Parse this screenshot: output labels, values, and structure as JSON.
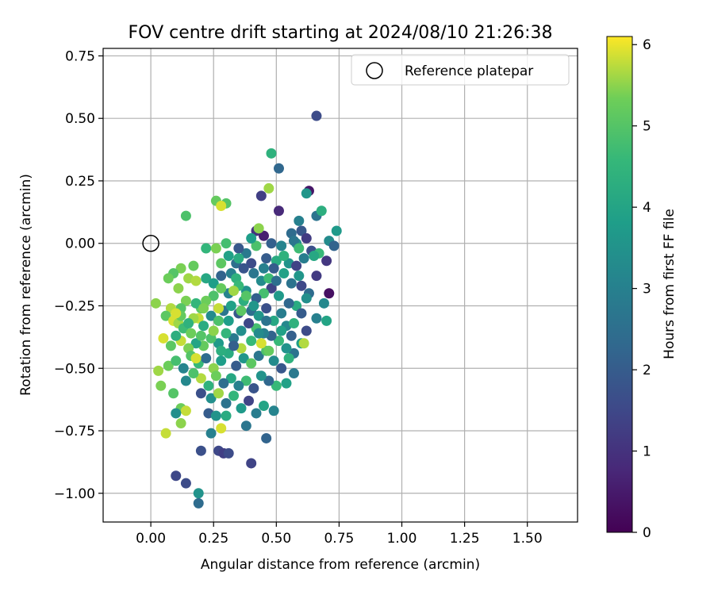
{
  "chart_data": {
    "type": "scatter",
    "title": "FOV centre drift starting at 2024/08/10 21:26:38",
    "xlabel": "Angular distance from reference (arcmin)",
    "ylabel": "Rotation from reference (arcmin)",
    "xlim": [
      -0.19,
      1.7
    ],
    "ylim": [
      -1.115,
      0.78
    ],
    "xticks": [
      0.0,
      0.25,
      0.5,
      0.75,
      1.0,
      1.25,
      1.5
    ],
    "xtick_labels": [
      "0.00",
      "0.25",
      "0.50",
      "0.75",
      "1.00",
      "1.25",
      "1.50"
    ],
    "yticks": [
      0.75,
      0.5,
      0.25,
      0.0,
      -0.25,
      -0.5,
      -0.75,
      -1.0
    ],
    "ytick_labels": [
      "0.75",
      "0.50",
      "0.25",
      "0.00",
      "−0.25",
      "−0.50",
      "−0.75",
      "−1.00"
    ],
    "grid": true,
    "legend": {
      "position": "upper right",
      "entries": [
        "Reference platepar"
      ]
    },
    "reference_point": {
      "x": 0.0,
      "y": 0.0
    },
    "colorbar": {
      "label": "Hours from first FF file",
      "range": [
        0,
        6.1
      ],
      "ticks": [
        0,
        1,
        2,
        3,
        4,
        5,
        6
      ],
      "tick_labels": [
        "0",
        "1",
        "2",
        "3",
        "4",
        "5",
        "6"
      ],
      "colormap": "viridis"
    },
    "points": [
      [
        0.66,
        0.51,
        1.6
      ],
      [
        0.48,
        0.36,
        4.4
      ],
      [
        0.51,
        0.3,
        2.3
      ],
      [
        0.63,
        0.21,
        0.4
      ],
      [
        0.44,
        0.19,
        1.3
      ],
      [
        0.62,
        0.2,
        3.6
      ],
      [
        0.47,
        0.22,
        5.6
      ],
      [
        0.51,
        0.13,
        0.8
      ],
      [
        0.26,
        0.17,
        5.2
      ],
      [
        0.3,
        0.16,
        5.0
      ],
      [
        0.28,
        0.15,
        5.9
      ],
      [
        0.66,
        0.11,
        2.6
      ],
      [
        0.68,
        0.13,
        4.3
      ],
      [
        0.14,
        0.11,
        4.9
      ],
      [
        0.42,
        0.05,
        1.0
      ],
      [
        0.45,
        0.03,
        0.6
      ],
      [
        0.43,
        0.06,
        5.5
      ],
      [
        0.59,
        0.09,
        3.0
      ],
      [
        0.6,
        0.05,
        1.9
      ],
      [
        0.74,
        0.05,
        3.7
      ],
      [
        0.62,
        0.02,
        1.2
      ],
      [
        0.56,
        0.04,
        2.4
      ],
      [
        0.48,
        0.0,
        2.1
      ],
      [
        0.52,
        -0.01,
        3.1
      ],
      [
        0.58,
        0.0,
        3.4
      ],
      [
        0.71,
        0.01,
        3.3
      ],
      [
        0.73,
        -0.01,
        2.2
      ],
      [
        0.64,
        -0.03,
        1.7
      ],
      [
        0.67,
        -0.04,
        4.6
      ],
      [
        0.7,
        -0.07,
        1.1
      ],
      [
        0.38,
        -0.04,
        2.8
      ],
      [
        0.35,
        -0.02,
        1.9
      ],
      [
        0.3,
        0.0,
        4.8
      ],
      [
        0.22,
        -0.02,
        4.5
      ],
      [
        0.31,
        -0.05,
        3.9
      ],
      [
        0.34,
        -0.08,
        2.5
      ],
      [
        0.4,
        -0.08,
        1.6
      ],
      [
        0.46,
        -0.06,
        2.0
      ],
      [
        0.5,
        -0.07,
        4.2
      ],
      [
        0.55,
        -0.08,
        3.5
      ],
      [
        0.58,
        -0.09,
        1.4
      ],
      [
        0.61,
        -0.06,
        2.9
      ],
      [
        0.65,
        -0.05,
        4.1
      ],
      [
        0.66,
        -0.13,
        1.2
      ],
      [
        0.71,
        -0.2,
        0.3
      ],
      [
        0.12,
        -0.1,
        5.4
      ],
      [
        0.17,
        -0.09,
        5.2
      ],
      [
        0.15,
        -0.14,
        5.6
      ],
      [
        0.18,
        -0.15,
        5.7
      ],
      [
        0.09,
        -0.12,
        5.0
      ],
      [
        0.07,
        -0.14,
        5.3
      ],
      [
        0.11,
        -0.18,
        5.5
      ],
      [
        0.22,
        -0.14,
        4.1
      ],
      [
        0.25,
        -0.16,
        3.8
      ],
      [
        0.28,
        -0.13,
        2.2
      ],
      [
        0.32,
        -0.12,
        3.0
      ],
      [
        0.34,
        -0.14,
        4.4
      ],
      [
        0.37,
        -0.1,
        1.8
      ],
      [
        0.41,
        -0.12,
        2.7
      ],
      [
        0.44,
        -0.15,
        3.3
      ],
      [
        0.47,
        -0.14,
        4.7
      ],
      [
        0.49,
        -0.1,
        2.0
      ],
      [
        0.53,
        -0.12,
        3.9
      ],
      [
        0.56,
        -0.16,
        2.6
      ],
      [
        0.59,
        -0.13,
        3.6
      ],
      [
        0.6,
        -0.17,
        1.5
      ],
      [
        0.63,
        -0.2,
        2.4
      ],
      [
        0.69,
        -0.24,
        3.2
      ],
      [
        0.7,
        -0.31,
        4.0
      ],
      [
        0.66,
        -0.3,
        3.0
      ],
      [
        0.62,
        -0.22,
        3.4
      ],
      [
        0.58,
        -0.25,
        4.2
      ],
      [
        0.55,
        -0.24,
        2.3
      ],
      [
        0.51,
        -0.21,
        3.7
      ],
      [
        0.48,
        -0.18,
        1.4
      ],
      [
        0.45,
        -0.2,
        4.8
      ],
      [
        0.42,
        -0.22,
        2.1
      ],
      [
        0.38,
        -0.19,
        3.5
      ],
      [
        0.35,
        -0.17,
        4.6
      ],
      [
        0.31,
        -0.2,
        3.1
      ],
      [
        0.28,
        -0.18,
        5.2
      ],
      [
        0.25,
        -0.21,
        4.9
      ],
      [
        0.22,
        -0.23,
        5.3
      ],
      [
        0.2,
        -0.26,
        5.1
      ],
      [
        0.18,
        -0.24,
        4.5
      ],
      [
        0.14,
        -0.23,
        5.4
      ],
      [
        0.12,
        -0.26,
        5.0
      ],
      [
        0.08,
        -0.26,
        5.7
      ],
      [
        0.02,
        -0.24,
        5.5
      ],
      [
        0.06,
        -0.29,
        5.1
      ],
      [
        0.09,
        -0.31,
        5.9
      ],
      [
        0.11,
        -0.32,
        5.6
      ],
      [
        0.13,
        -0.34,
        4.7
      ],
      [
        0.16,
        -0.36,
        5.3
      ],
      [
        0.19,
        -0.3,
        5.8
      ],
      [
        0.21,
        -0.33,
        4.2
      ],
      [
        0.24,
        -0.29,
        3.3
      ],
      [
        0.27,
        -0.31,
        4.9
      ],
      [
        0.29,
        -0.27,
        2.7
      ],
      [
        0.32,
        -0.25,
        3.9
      ],
      [
        0.35,
        -0.28,
        1.9
      ],
      [
        0.37,
        -0.23,
        4.3
      ],
      [
        0.4,
        -0.27,
        2.5
      ],
      [
        0.43,
        -0.29,
        3.6
      ],
      [
        0.46,
        -0.26,
        1.7
      ],
      [
        0.49,
        -0.31,
        4.1
      ],
      [
        0.52,
        -0.28,
        2.9
      ],
      [
        0.54,
        -0.33,
        3.2
      ],
      [
        0.57,
        -0.32,
        4.4
      ],
      [
        0.6,
        -0.28,
        2.0
      ],
      [
        0.62,
        -0.35,
        1.6
      ],
      [
        0.6,
        -0.4,
        3.8
      ],
      [
        0.61,
        -0.4,
        5.7
      ],
      [
        0.57,
        -0.44,
        2.6
      ],
      [
        0.54,
        -0.42,
        3.5
      ],
      [
        0.51,
        -0.39,
        4.6
      ],
      [
        0.48,
        -0.37,
        2.2
      ],
      [
        0.45,
        -0.36,
        3.0
      ],
      [
        0.42,
        -0.34,
        4.8
      ],
      [
        0.39,
        -0.32,
        1.5
      ],
      [
        0.36,
        -0.35,
        3.4
      ],
      [
        0.33,
        -0.38,
        2.8
      ],
      [
        0.3,
        -0.36,
        4.5
      ],
      [
        0.27,
        -0.4,
        3.7
      ],
      [
        0.24,
        -0.38,
        4.9
      ],
      [
        0.21,
        -0.41,
        5.2
      ],
      [
        0.18,
        -0.4,
        4.0
      ],
      [
        0.15,
        -0.42,
        5.4
      ],
      [
        0.12,
        -0.39,
        5.8
      ],
      [
        0.1,
        -0.37,
        4.3
      ],
      [
        0.08,
        -0.41,
        5.1
      ],
      [
        0.05,
        -0.38,
        5.9
      ],
      [
        0.03,
        -0.51,
        5.6
      ],
      [
        0.07,
        -0.49,
        5.3
      ],
      [
        0.1,
        -0.47,
        4.8
      ],
      [
        0.13,
        -0.5,
        3.1
      ],
      [
        0.16,
        -0.45,
        5.0
      ],
      [
        0.19,
        -0.48,
        4.6
      ],
      [
        0.22,
        -0.46,
        2.4
      ],
      [
        0.25,
        -0.5,
        5.5
      ],
      [
        0.28,
        -0.47,
        3.8
      ],
      [
        0.31,
        -0.44,
        4.2
      ],
      [
        0.34,
        -0.49,
        2.0
      ],
      [
        0.37,
        -0.46,
        3.6
      ],
      [
        0.4,
        -0.48,
        5.1
      ],
      [
        0.43,
        -0.45,
        2.7
      ],
      [
        0.46,
        -0.43,
        4.9
      ],
      [
        0.49,
        -0.47,
        3.3
      ],
      [
        0.52,
        -0.5,
        1.9
      ],
      [
        0.55,
        -0.46,
        4.4
      ],
      [
        0.57,
        -0.52,
        2.8
      ],
      [
        0.54,
        -0.56,
        3.9
      ],
      [
        0.5,
        -0.57,
        4.6
      ],
      [
        0.47,
        -0.55,
        2.3
      ],
      [
        0.44,
        -0.53,
        3.5
      ],
      [
        0.41,
        -0.58,
        1.8
      ],
      [
        0.38,
        -0.55,
        4.7
      ],
      [
        0.35,
        -0.57,
        3.0
      ],
      [
        0.32,
        -0.54,
        4.1
      ],
      [
        0.29,
        -0.56,
        2.5
      ],
      [
        0.26,
        -0.53,
        5.3
      ],
      [
        0.23,
        -0.57,
        4.4
      ],
      [
        0.2,
        -0.54,
        5.7
      ],
      [
        0.17,
        -0.52,
        4.9
      ],
      [
        0.14,
        -0.55,
        3.2
      ],
      [
        0.04,
        -0.57,
        5.4
      ],
      [
        0.09,
        -0.6,
        5.0
      ],
      [
        0.2,
        -0.6,
        1.7
      ],
      [
        0.24,
        -0.62,
        3.4
      ],
      [
        0.27,
        -0.6,
        5.6
      ],
      [
        0.3,
        -0.64,
        2.6
      ],
      [
        0.33,
        -0.61,
        4.5
      ],
      [
        0.36,
        -0.66,
        3.7
      ],
      [
        0.39,
        -0.63,
        1.4
      ],
      [
        0.42,
        -0.68,
        2.9
      ],
      [
        0.45,
        -0.65,
        4.0
      ],
      [
        0.49,
        -0.67,
        3.1
      ],
      [
        0.23,
        -0.68,
        2.0
      ],
      [
        0.26,
        -0.69,
        3.5
      ],
      [
        0.3,
        -0.69,
        4.2
      ],
      [
        0.12,
        -0.66,
        5.3
      ],
      [
        0.14,
        -0.67,
        5.8
      ],
      [
        0.1,
        -0.68,
        3.4
      ],
      [
        0.12,
        -0.72,
        5.5
      ],
      [
        0.24,
        -0.76,
        3.0
      ],
      [
        0.28,
        -0.74,
        5.9
      ],
      [
        0.38,
        -0.73,
        2.7
      ],
      [
        0.46,
        -0.78,
        2.2
      ],
      [
        0.06,
        -0.76,
        5.8
      ],
      [
        0.2,
        -0.83,
        1.7
      ],
      [
        0.27,
        -0.83,
        1.5
      ],
      [
        0.29,
        -0.84,
        1.3
      ],
      [
        0.31,
        -0.84,
        1.6
      ],
      [
        0.4,
        -0.88,
        1.4
      ],
      [
        0.1,
        -0.93,
        1.5
      ],
      [
        0.14,
        -0.96,
        1.6
      ],
      [
        0.19,
        -1.0,
        3.5
      ],
      [
        0.19,
        -1.04,
        2.4
      ],
      [
        0.36,
        -0.42,
        5.7
      ],
      [
        0.44,
        -0.4,
        5.9
      ],
      [
        0.47,
        -0.43,
        5.2
      ],
      [
        0.4,
        -0.39,
        4.6
      ],
      [
        0.33,
        -0.41,
        2.1
      ],
      [
        0.28,
        -0.43,
        4.3
      ],
      [
        0.25,
        -0.35,
        5.5
      ],
      [
        0.18,
        -0.46,
        5.9
      ],
      [
        0.2,
        -0.37,
        5.0
      ],
      [
        0.27,
        -0.26,
        5.8
      ],
      [
        0.33,
        -0.19,
        5.6
      ],
      [
        0.38,
        -0.21,
        5.0
      ],
      [
        0.21,
        -0.26,
        5.4
      ],
      [
        0.17,
        -0.3,
        5.6
      ],
      [
        0.15,
        -0.32,
        4.4
      ],
      [
        0.12,
        -0.29,
        5.2
      ],
      [
        0.1,
        -0.28,
        5.9
      ],
      [
        0.31,
        -0.31,
        3.8
      ],
      [
        0.43,
        -0.36,
        3.3
      ],
      [
        0.56,
        -0.37,
        2.1
      ],
      [
        0.41,
        -0.25,
        3.6
      ],
      [
        0.36,
        -0.27,
        5.1
      ],
      [
        0.46,
        -0.31,
        2.6
      ],
      [
        0.52,
        -0.35,
        3.9
      ],
      [
        0.5,
        -0.15,
        2.5
      ],
      [
        0.53,
        -0.05,
        4.4
      ],
      [
        0.42,
        -0.01,
        4.9
      ],
      [
        0.4,
        0.02,
        3.8
      ],
      [
        0.35,
        -0.06,
        4.2
      ],
      [
        0.28,
        -0.08,
        5.1
      ],
      [
        0.26,
        -0.02,
        5.4
      ],
      [
        0.45,
        -0.1,
        3.0
      ],
      [
        0.57,
        0.01,
        2.7
      ],
      [
        0.59,
        -0.02,
        4.7
      ]
    ]
  }
}
